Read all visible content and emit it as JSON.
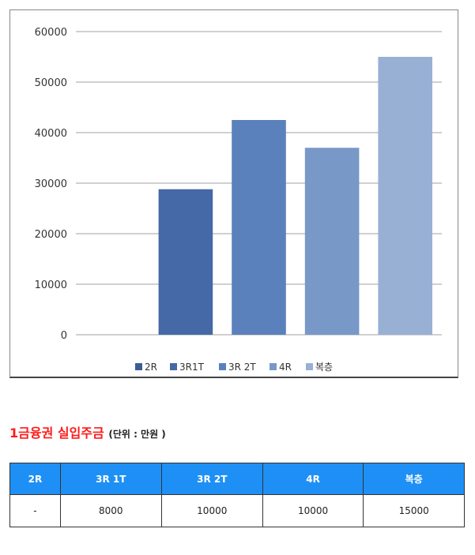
{
  "chart_data": {
    "type": "bar",
    "categories": [
      "2R",
      "3R1T",
      "3R 2T",
      "4R",
      "복층"
    ],
    "values": [
      0,
      28800,
      42500,
      37000,
      55000
    ],
    "colors": [
      "#3b5d91",
      "#4569a6",
      "#5b81bc",
      "#7898c7",
      "#98b0d4"
    ],
    "ylim": [
      0,
      60000
    ],
    "yticks": [
      0,
      10000,
      20000,
      30000,
      40000,
      50000,
      60000
    ],
    "grid": true,
    "legend": "bottom"
  },
  "heading": {
    "title": "1금융권 실입주금",
    "unit": "(단위 : 만원 )"
  },
  "table": {
    "headers": [
      "2R",
      "3R 1T",
      "3R 2T",
      "4R",
      "복층"
    ],
    "rows": [
      [
        "-",
        "8000",
        "10000",
        "10000",
        "15000"
      ]
    ]
  }
}
